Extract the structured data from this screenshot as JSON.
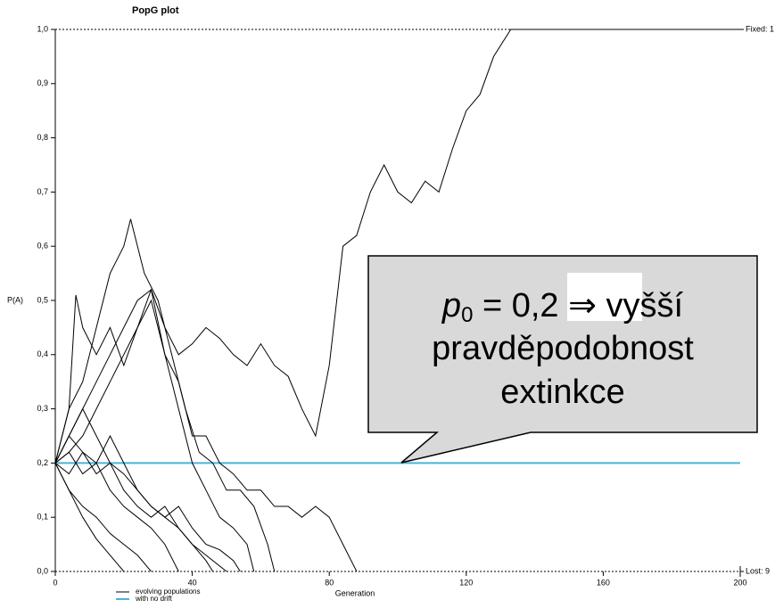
{
  "chart_data": {
    "type": "line",
    "title": "PopG plot",
    "ylabel": "P(A)",
    "xlabel": "Generation",
    "xlim": [
      0,
      200
    ],
    "ylim": [
      0,
      1
    ],
    "xticks": [
      0,
      40,
      80,
      120,
      160,
      200
    ],
    "yticks": [
      {
        "value": 0,
        "label": "0,0"
      },
      {
        "value": 0.1,
        "label": "0,1"
      },
      {
        "value": 0.2,
        "label": "0,2"
      },
      {
        "value": 0.3,
        "label": "0,3"
      },
      {
        "value": 0.4,
        "label": "0,4"
      },
      {
        "value": 0.5,
        "label": "0,5"
      },
      {
        "value": 0.6,
        "label": "0,6"
      },
      {
        "value": 0.7,
        "label": "0,7"
      },
      {
        "value": 0.8,
        "label": "0,8"
      },
      {
        "value": 0.9,
        "label": "0,9"
      },
      {
        "value": 1,
        "label": "1,0"
      }
    ],
    "fixed_label": "Fixed: 1",
    "lost_label": "Lost: 9",
    "legend": [
      {
        "label": "evolving populations",
        "color": "#000000"
      },
      {
        "label": "with no drift",
        "color": "#4bb3d8"
      }
    ],
    "series": [
      {
        "color": "#000000",
        "x": [
          0,
          4,
          6,
          8,
          12,
          16,
          20,
          24,
          28,
          32,
          36,
          40,
          44,
          48,
          52,
          56,
          60,
          64,
          68,
          72,
          76,
          80,
          84,
          88,
          92,
          96,
          100,
          104,
          108,
          112,
          116,
          120,
          124,
          128,
          133,
          200
        ],
        "values": [
          0.2,
          0.3,
          0.51,
          0.45,
          0.4,
          0.45,
          0.38,
          0.45,
          0.52,
          0.45,
          0.4,
          0.42,
          0.45,
          0.43,
          0.4,
          0.38,
          0.42,
          0.38,
          0.36,
          0.3,
          0.25,
          0.38,
          0.6,
          0.62,
          0.7,
          0.75,
          0.7,
          0.68,
          0.72,
          0.7,
          0.78,
          0.85,
          0.88,
          0.95,
          1,
          1
        ]
      },
      {
        "color": "#000000",
        "x": [
          0,
          4,
          8,
          12,
          16,
          20,
          22,
          26,
          30,
          34,
          38,
          42,
          46,
          50,
          54,
          58,
          62,
          64
        ],
        "values": [
          0.2,
          0.3,
          0.35,
          0.45,
          0.55,
          0.6,
          0.65,
          0.55,
          0.5,
          0.4,
          0.3,
          0.22,
          0.2,
          0.15,
          0.15,
          0.12,
          0.05,
          0
        ]
      },
      {
        "color": "#000000",
        "x": [
          0,
          4,
          8,
          12,
          16,
          20,
          24,
          28,
          32,
          36,
          40,
          44,
          48,
          52,
          56,
          60,
          64,
          68,
          72,
          76,
          80,
          84,
          88
        ],
        "values": [
          0.2,
          0.25,
          0.3,
          0.35,
          0.4,
          0.45,
          0.5,
          0.52,
          0.4,
          0.35,
          0.25,
          0.25,
          0.2,
          0.18,
          0.15,
          0.15,
          0.12,
          0.12,
          0.1,
          0.12,
          0.1,
          0.05,
          0
        ]
      },
      {
        "color": "#000000",
        "x": [
          0,
          4,
          8,
          12,
          16,
          20,
          24,
          28,
          32,
          36,
          40,
          44,
          48,
          52,
          56,
          58
        ],
        "values": [
          0.2,
          0.22,
          0.25,
          0.3,
          0.35,
          0.4,
          0.45,
          0.5,
          0.4,
          0.3,
          0.2,
          0.15,
          0.1,
          0.08,
          0.05,
          0
        ]
      },
      {
        "color": "#000000",
        "x": [
          0,
          4,
          8,
          12,
          16,
          20,
          24,
          28,
          32,
          36,
          40,
          44,
          46
        ],
        "values": [
          0.2,
          0.25,
          0.22,
          0.18,
          0.2,
          0.15,
          0.12,
          0.1,
          0.12,
          0.08,
          0.05,
          0.02,
          0
        ]
      },
      {
        "color": "#000000",
        "x": [
          0,
          4,
          8,
          12,
          16,
          20
        ],
        "values": [
          0.2,
          0.15,
          0.1,
          0.06,
          0.03,
          0
        ]
      },
      {
        "color": "#000000",
        "x": [
          0,
          4,
          8,
          12,
          16,
          20,
          24,
          28
        ],
        "values": [
          0.2,
          0.15,
          0.12,
          0.1,
          0.07,
          0.05,
          0.03,
          0
        ]
      },
      {
        "color": "#000000",
        "x": [
          0,
          4,
          8,
          12,
          16,
          20,
          24,
          28,
          32,
          36
        ],
        "values": [
          0.2,
          0.18,
          0.22,
          0.2,
          0.15,
          0.12,
          0.1,
          0.08,
          0.05,
          0
        ]
      },
      {
        "color": "#000000",
        "x": [
          0,
          4,
          8,
          12,
          16,
          20,
          24,
          28,
          32,
          36,
          40,
          44,
          50
        ],
        "values": [
          0.2,
          0.25,
          0.3,
          0.25,
          0.2,
          0.18,
          0.15,
          0.12,
          0.1,
          0.08,
          0.05,
          0.03,
          0
        ]
      },
      {
        "color": "#000000",
        "x": [
          0,
          4,
          8,
          12,
          16,
          20,
          24,
          28,
          32,
          36,
          40,
          44,
          48,
          52,
          54
        ],
        "values": [
          0.2,
          0.22,
          0.18,
          0.2,
          0.25,
          0.2,
          0.15,
          0.12,
          0.1,
          0.12,
          0.08,
          0.05,
          0.04,
          0.02,
          0
        ]
      }
    ],
    "no_drift": {
      "color": "#4bb3d8",
      "x": [
        0,
        200
      ],
      "values": [
        0.2,
        0.2
      ]
    },
    "callout": {
      "italic": "p",
      "subscript": "0",
      "rest": " = 0,2 ⇒ vyšší",
      "lines": [
        "pravděpodobnost",
        "extinkce"
      ]
    }
  }
}
